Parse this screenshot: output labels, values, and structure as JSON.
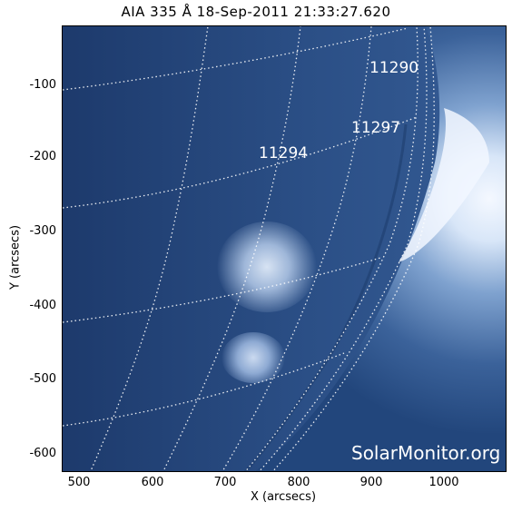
{
  "title": "AIA 335 Å 18-Sep-2011 21:33:27.620",
  "axes": {
    "xlabel": "X (arcsecs)",
    "ylabel": "Y (arcsecs)",
    "x_ticks": [
      "500",
      "600",
      "700",
      "800",
      "900",
      "1000"
    ],
    "y_ticks": [
      "-100",
      "-200",
      "-300",
      "-400",
      "-500",
      "-600"
    ]
  },
  "active_regions": [
    {
      "id": "ar-11290",
      "label": "11290"
    },
    {
      "id": "ar-11297",
      "label": "11297"
    },
    {
      "id": "ar-11294",
      "label": "11294"
    }
  ],
  "watermark": "SolarMonitor.org",
  "colors": {
    "background_dark": "#1c3766",
    "disk_mid": "#3f6ca6",
    "limb_bright": "#e9f2ff",
    "grid": "#ffffff"
  }
}
